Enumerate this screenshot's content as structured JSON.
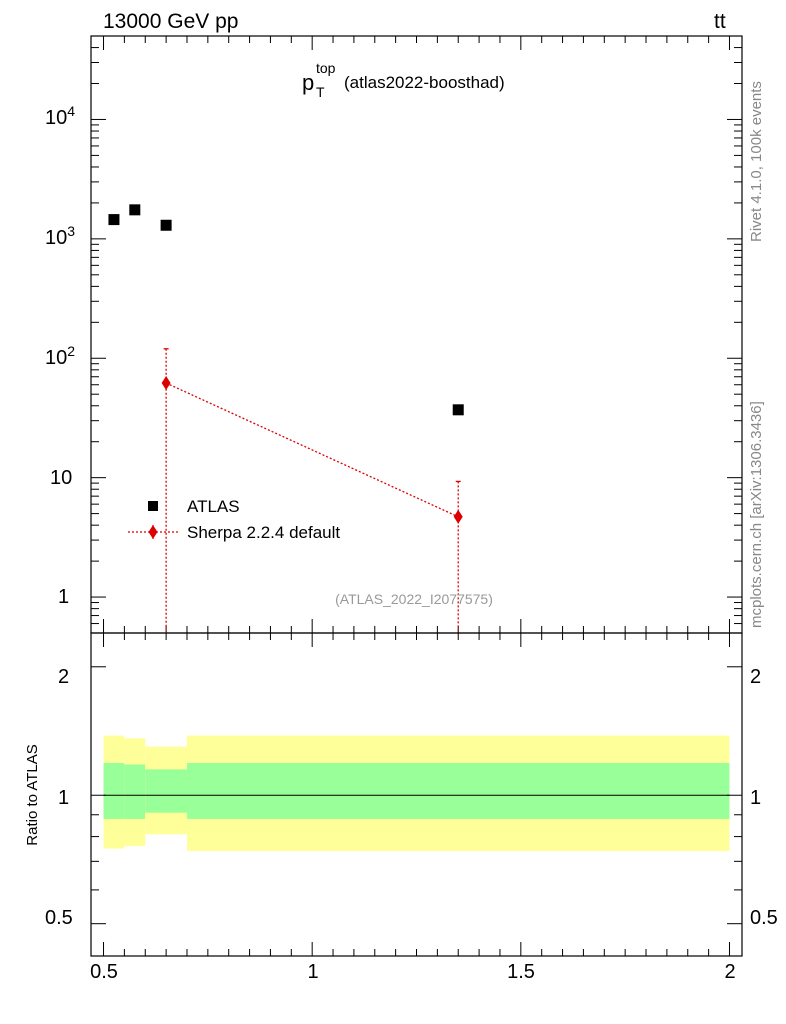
{
  "header": {
    "left": "13000 GeV pp",
    "right_base": "tt",
    "right_bar": "̅"
  },
  "title": {
    "main": "p",
    "sup": "top",
    "sub": "T",
    "rest": "(atlas2022-boosthad)"
  },
  "watermark": "(ATLAS_2022_I2077575)",
  "side_labels": {
    "top": "Rivet 4.1.0,  100k events",
    "bottom": "mcplots.cern.ch [arXiv:1306.3436]"
  },
  "chart_data": [
    {
      "type": "scatter",
      "name": "main",
      "yscale": "log",
      "xlim": [
        0.47,
        2.03
      ],
      "ylim": [
        0.5,
        50000
      ],
      "ytick_labels": [
        "1",
        "10",
        "10^2",
        "10^3",
        "10^4"
      ],
      "series": [
        {
          "name": "ATLAS",
          "marker": "square",
          "color": "#000000",
          "points": [
            {
              "x": 0.525,
              "y": 1450
            },
            {
              "x": 0.575,
              "y": 1750
            },
            {
              "x": 0.65,
              "y": 1300
            },
            {
              "x": 1.35,
              "y": 37
            }
          ]
        },
        {
          "name": "Sherpa 2.2.4 default",
          "marker": "diamond",
          "color": "#dd0000",
          "linestyle": "dotted",
          "points": [
            {
              "x": 0.65,
              "y": 62,
              "ylow": 0.5,
              "yhigh": 120
            },
            {
              "x": 1.35,
              "y": 4.7,
              "ylow": 0.5,
              "yhigh": 9.3
            }
          ]
        }
      ],
      "legend": [
        {
          "label": "ATLAS"
        },
        {
          "label": "Sherpa 2.2.4 default"
        }
      ],
      "legend_position": "lower-left"
    },
    {
      "type": "area",
      "name": "ratio",
      "yscale": "log",
      "xlim": [
        0.47,
        2.03
      ],
      "ylim": [
        0.42,
        2.4
      ],
      "ylabel": "Ratio to ATLAS",
      "ytick_labels": [
        "0.5",
        "1",
        "2"
      ],
      "xtick_labels": [
        "0.5",
        "1",
        "1.5",
        "2"
      ],
      "reference_line": 1.0,
      "bins": [
        {
          "x0": 0.5,
          "x1": 0.55,
          "inner": [
            0.88,
            1.19
          ],
          "outer": [
            0.75,
            1.38
          ]
        },
        {
          "x0": 0.55,
          "x1": 0.6,
          "inner": [
            0.88,
            1.18
          ],
          "outer": [
            0.76,
            1.36
          ]
        },
        {
          "x0": 0.6,
          "x1": 0.7,
          "inner": [
            0.91,
            1.15
          ],
          "outer": [
            0.81,
            1.3
          ]
        },
        {
          "x0": 0.7,
          "x1": 2.0,
          "inner": [
            0.88,
            1.19
          ],
          "outer": [
            0.74,
            1.38
          ]
        }
      ],
      "colors": {
        "inner": "#99ff99",
        "outer": "#ffff99"
      }
    }
  ]
}
